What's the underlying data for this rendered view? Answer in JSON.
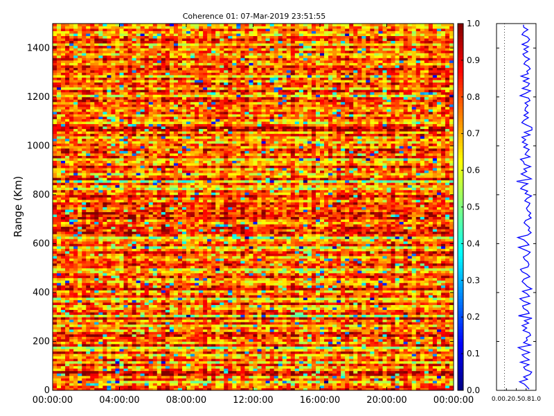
{
  "chart_data": [
    {
      "type": "heatmap",
      "title": "Coherence 01: 07-Mar-2019 23:51:55",
      "xlabel": "",
      "ylabel": "Range (Km)",
      "xlim": [
        "00:00:00",
        "24:00:00"
      ],
      "ylim": [
        0,
        1500
      ],
      "x_ticks": [
        "00:00:00",
        "04:00:00",
        "08:00:00",
        "12:00:00",
        "16:00:00",
        "20:00:00",
        "00:00:00"
      ],
      "y_ticks": [
        0,
        200,
        400,
        600,
        800,
        1000,
        1200,
        1400
      ],
      "colormap": "jet",
      "color_range": [
        0.0,
        1.0
      ],
      "colorbar_ticks": [
        "0.0",
        "0.1",
        "0.2",
        "0.3",
        "0.4",
        "0.5",
        "0.6",
        "0.7",
        "0.8",
        "0.9",
        "1.0"
      ],
      "range_step_km": 15,
      "row_mean_coherence": [
        0.85,
        0.78,
        0.72,
        0.62,
        0.8,
        0.7,
        0.88,
        0.93,
        0.76,
        0.7,
        0.85,
        0.62,
        0.8,
        0.72,
        0.68,
        0.86,
        0.7,
        0.55,
        0.88,
        0.72,
        0.8,
        0.76,
        0.9,
        0.84,
        0.7,
        0.78,
        0.66,
        0.82,
        0.74,
        0.9,
        0.58,
        0.86,
        0.8,
        0.72,
        0.68,
        0.86,
        0.7,
        0.6,
        0.84,
        0.76,
        0.7,
        0.9,
        0.82,
        0.76,
        0.66,
        0.72,
        0.86,
        0.8,
        0.66,
        0.62,
        0.8,
        0.86,
        0.82,
        0.74,
        0.7,
        0.82,
        0.88,
        0.72,
        0.6,
        0.84,
        0.78,
        0.7,
        0.56,
        0.8,
        0.9,
        0.82,
        0.86,
        0.8,
        0.72,
        0.76,
        0.9,
        0.84,
        0.88,
        0.82,
        0.8,
        0.82,
        0.86,
        0.72,
        0.8,
        0.9,
        0.74,
        0.8,
        0.62,
        0.7,
        0.8,
        0.55,
        0.9,
        0.76,
        0.66,
        0.8,
        0.7,
        0.88,
        0.7,
        0.7,
        0.62,
        0.86,
        0.74,
        0.82,
        0.86,
        0.72,
        0.8,
        0.68,
        0.74,
        0.66,
        0.86,
        0.72,
        0.94,
        0.94,
        0.78,
        0.68,
        0.72,
        0.82,
        0.72,
        0.84,
        0.74,
        0.74,
        0.8,
        0.76,
        0.86,
        0.82,
        0.62,
        0.76,
        0.88,
        0.68,
        0.8,
        0.86,
        0.7,
        0.84,
        0.66,
        0.82,
        0.78,
        0.86,
        0.84,
        0.7,
        0.76,
        0.84,
        0.74,
        0.68,
        0.8,
        0.72,
        0.84,
        0.66,
        0.82,
        0.86,
        0.8,
        0.66,
        0.7,
        0.8,
        0.68,
        0.72
      ]
    },
    {
      "type": "line",
      "title": "",
      "xlabel": "",
      "ylabel": "",
      "xlim": [
        0.0,
        1.0
      ],
      "ylim": [
        0,
        1500
      ],
      "x_ticks": [
        "0.0",
        "0.2",
        "0.5",
        "0.8",
        "1.0"
      ],
      "series": [
        {
          "color": "#0000ff"
        }
      ]
    }
  ]
}
